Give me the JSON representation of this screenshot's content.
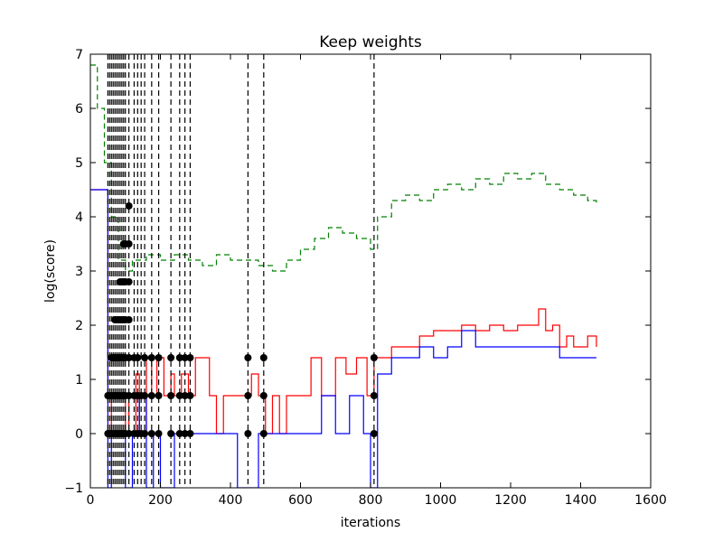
{
  "chart_data": {
    "type": "line",
    "title": "Keep weights",
    "xlabel": "iterations",
    "ylabel": "log(score)",
    "xlim": [
      0,
      1600
    ],
    "ylim": [
      -1,
      7
    ],
    "xticks": [
      "0",
      "200",
      "400",
      "600",
      "800",
      "1000",
      "1200",
      "1400",
      "1600"
    ],
    "yticks": [
      "−1",
      "0",
      "1",
      "2",
      "3",
      "4",
      "5",
      "6",
      "7"
    ],
    "grid": false,
    "legend": "none",
    "colors": {
      "best": "#ff0000",
      "current": "#0000ff",
      "temperature": "#008000",
      "restart": "#000000"
    },
    "series": [
      {
        "key": "best",
        "style": "solid",
        "x": [
          0,
          50,
          60,
          100,
          110,
          130,
          140,
          160,
          175,
          190,
          210,
          230,
          240,
          260,
          280,
          300,
          340,
          360,
          380,
          440,
          460,
          480,
          500,
          520,
          540,
          560,
          600,
          630,
          660,
          700,
          730,
          760,
          790,
          810,
          830,
          860,
          900,
          940,
          980,
          1020,
          1060,
          1100,
          1140,
          1180,
          1220,
          1260,
          1280,
          1300,
          1320,
          1340,
          1360,
          1380,
          1400,
          1420,
          1445
        ],
        "y": [
          4.5,
          0.7,
          0.0,
          0.7,
          0.0,
          1.1,
          0.0,
          1.4,
          0.7,
          1.4,
          0.7,
          1.1,
          0.7,
          1.1,
          0.7,
          1.4,
          0.7,
          0.0,
          0.7,
          0.7,
          1.1,
          0.7,
          0.0,
          0.7,
          0.0,
          0.7,
          0.7,
          1.4,
          0.7,
          1.4,
          1.1,
          1.4,
          0.7,
          1.4,
          1.4,
          1.6,
          1.6,
          1.8,
          1.9,
          1.9,
          2.0,
          1.9,
          2.0,
          1.9,
          2.0,
          2.0,
          2.3,
          1.9,
          2.0,
          1.6,
          1.8,
          1.6,
          1.6,
          1.8,
          1.6
        ]
      },
      {
        "key": "current",
        "style": "solid",
        "x": [
          0,
          50,
          60,
          100,
          120,
          140,
          160,
          180,
          200,
          240,
          300,
          360,
          420,
          480,
          540,
          600,
          660,
          700,
          740,
          780,
          800,
          820,
          860,
          900,
          940,
          980,
          1020,
          1060,
          1100,
          1140,
          1180,
          1220,
          1260,
          1300,
          1340,
          1380,
          1420,
          1445
        ],
        "y": [
          4.5,
          -1.0,
          0.0,
          -1.0,
          0.0,
          0.7,
          -1.0,
          0.0,
          -1.0,
          0.0,
          0.0,
          0.0,
          -1.0,
          0.0,
          0.0,
          0.0,
          0.7,
          0.0,
          0.7,
          0.0,
          -1.0,
          1.1,
          1.4,
          1.4,
          1.6,
          1.4,
          1.6,
          1.9,
          1.6,
          1.6,
          1.6,
          1.6,
          1.6,
          1.6,
          1.4,
          1.4,
          1.4,
          1.4
        ]
      },
      {
        "key": "temperature",
        "style": "dashed",
        "x": [
          0,
          20,
          40,
          60,
          80,
          100,
          120,
          160,
          200,
          240,
          280,
          320,
          360,
          400,
          440,
          480,
          520,
          560,
          600,
          640,
          680,
          720,
          760,
          800,
          820,
          860,
          900,
          940,
          980,
          1020,
          1060,
          1100,
          1140,
          1180,
          1220,
          1260,
          1300,
          1340,
          1380,
          1420,
          1445
        ],
        "y": [
          6.8,
          6.0,
          5.0,
          4.0,
          3.2,
          3.0,
          3.2,
          3.3,
          3.2,
          3.3,
          3.2,
          3.1,
          3.3,
          3.2,
          3.2,
          3.1,
          3.0,
          3.2,
          3.4,
          3.6,
          3.8,
          3.7,
          3.6,
          3.4,
          4.0,
          4.3,
          4.4,
          4.3,
          4.5,
          4.6,
          4.5,
          4.7,
          4.6,
          4.8,
          4.7,
          4.8,
          4.6,
          4.5,
          4.4,
          4.3,
          4.2
        ]
      }
    ],
    "restart_markers": {
      "x": [
        50,
        55,
        60,
        65,
        70,
        75,
        80,
        85,
        90,
        95,
        100,
        110,
        125,
        135,
        145,
        155,
        175,
        195,
        230,
        255,
        270,
        285,
        450,
        495,
        810
      ],
      "peak": [
        1.0,
        1.2,
        1.5,
        1.8,
        2.1,
        2.4,
        2.7,
        3.0,
        3.3,
        3.6,
        3.9,
        4.2,
        1.4,
        1.4,
        1.0,
        1.4,
        1.4,
        1.4,
        1.4,
        1.4,
        1.6,
        1.4,
        1.6,
        1.4,
        1.8
      ]
    }
  }
}
